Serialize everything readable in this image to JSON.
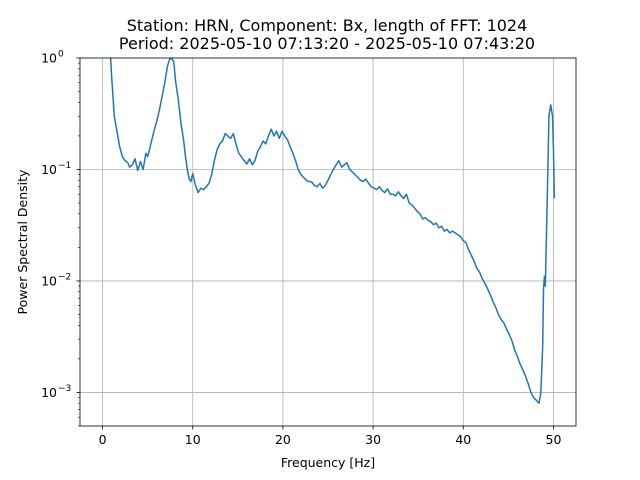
{
  "chart_data": {
    "type": "line",
    "title_line1": "Station: HRN, Component: Bx, length of FFT: 1024",
    "title_line2": "Period: 2025-05-10 07:13:20 - 2025-05-10 07:43:20",
    "xlabel": "Frequency [Hz]",
    "ylabel": "Power Spectral Density",
    "xlim": [
      -2.5,
      52.5
    ],
    "ylim": [
      0.0005,
      1
    ],
    "yscale": "log",
    "grid": true,
    "line_color": "#1f77b4",
    "xticks": [
      {
        "value": 0,
        "label": "0"
      },
      {
        "value": 10,
        "label": "10"
      },
      {
        "value": 20,
        "label": "20"
      },
      {
        "value": 30,
        "label": "30"
      },
      {
        "value": 40,
        "label": "40"
      },
      {
        "value": 50,
        "label": "50"
      }
    ],
    "yticks": [
      {
        "value": 0.001,
        "base": "10",
        "exp": "−3"
      },
      {
        "value": 0.01,
        "base": "10",
        "exp": "−2"
      },
      {
        "value": 0.1,
        "base": "10",
        "exp": "−1"
      },
      {
        "value": 1,
        "base": "10",
        "exp": "0"
      }
    ],
    "series": [
      {
        "x": [
          0.9,
          1.0,
          1.3,
          1.6,
          1.9,
          2.2,
          2.5,
          2.8,
          3.0,
          3.3,
          3.6,
          3.9,
          4.2,
          4.5,
          4.8,
          5.0,
          5.2,
          5.5,
          5.7,
          6.0,
          6.3,
          6.6,
          6.9,
          7.2,
          7.5,
          7.7,
          7.9,
          8.1,
          8.4,
          8.7,
          9.0,
          9.2,
          9.4,
          9.6,
          9.8,
          10.0,
          10.3,
          10.6,
          10.9,
          11.2,
          11.5,
          11.8,
          12.1,
          12.4,
          12.7,
          13.0,
          13.3,
          13.6,
          13.9,
          14.2,
          14.5,
          14.8,
          15.1,
          15.4,
          15.7,
          16.0,
          16.3,
          16.6,
          16.9,
          17.2,
          17.5,
          17.8,
          18.1,
          18.4,
          18.7,
          19.0,
          19.3,
          19.6,
          19.9,
          20.2,
          20.5,
          20.8,
          21.1,
          21.4,
          21.7,
          22.0,
          22.3,
          22.6,
          22.9,
          23.2,
          23.5,
          23.8,
          24.1,
          24.4,
          24.7,
          25.0,
          25.3,
          25.6,
          25.9,
          26.2,
          26.5,
          26.8,
          27.1,
          27.4,
          27.7,
          28.0,
          28.3,
          28.6,
          28.9,
          29.2,
          29.5,
          29.8,
          30.1,
          30.4,
          30.7,
          31.0,
          31.3,
          31.6,
          31.9,
          32.2,
          32.5,
          32.8,
          33.1,
          33.4,
          33.7,
          34.0,
          34.3,
          34.6,
          34.9,
          35.2,
          35.5,
          35.8,
          36.1,
          36.4,
          36.7,
          37.0,
          37.3,
          37.6,
          37.9,
          38.2,
          38.5,
          38.8,
          39.1,
          39.4,
          39.7,
          40.0,
          40.3,
          40.6,
          40.9,
          41.2,
          41.5,
          41.8,
          42.1,
          42.4,
          42.7,
          43.0,
          43.3,
          43.6,
          43.9,
          44.2,
          44.5,
          44.8,
          45.1,
          45.4,
          45.7,
          46.0,
          46.3,
          46.6,
          46.9,
          47.2,
          47.5,
          47.8,
          48.1,
          48.4,
          48.6,
          48.8,
          48.9,
          49.0,
          49.1,
          49.3,
          49.5,
          49.7,
          49.9,
          50.0,
          50.1
        ],
        "y": [
          1.0,
          0.7,
          0.3,
          0.22,
          0.16,
          0.13,
          0.12,
          0.115,
          0.105,
          0.11,
          0.125,
          0.098,
          0.118,
          0.1,
          0.14,
          0.13,
          0.15,
          0.19,
          0.22,
          0.27,
          0.34,
          0.45,
          0.6,
          0.85,
          1.0,
          0.98,
          0.92,
          0.62,
          0.42,
          0.26,
          0.18,
          0.13,
          0.1,
          0.082,
          0.078,
          0.092,
          0.072,
          0.062,
          0.068,
          0.066,
          0.07,
          0.075,
          0.09,
          0.12,
          0.15,
          0.17,
          0.18,
          0.21,
          0.2,
          0.19,
          0.21,
          0.17,
          0.14,
          0.13,
          0.12,
          0.112,
          0.125,
          0.11,
          0.12,
          0.145,
          0.16,
          0.18,
          0.17,
          0.2,
          0.23,
          0.2,
          0.22,
          0.19,
          0.22,
          0.2,
          0.185,
          0.16,
          0.14,
          0.12,
          0.1,
          0.09,
          0.085,
          0.08,
          0.078,
          0.077,
          0.072,
          0.07,
          0.075,
          0.068,
          0.072,
          0.08,
          0.09,
          0.1,
          0.11,
          0.12,
          0.105,
          0.11,
          0.115,
          0.1,
          0.095,
          0.09,
          0.085,
          0.08,
          0.078,
          0.082,
          0.075,
          0.07,
          0.068,
          0.066,
          0.07,
          0.065,
          0.062,
          0.067,
          0.06,
          0.06,
          0.058,
          0.063,
          0.058,
          0.055,
          0.06,
          0.05,
          0.048,
          0.045,
          0.042,
          0.04,
          0.036,
          0.037,
          0.035,
          0.034,
          0.032,
          0.033,
          0.03,
          0.031,
          0.028,
          0.029,
          0.027,
          0.028,
          0.027,
          0.026,
          0.025,
          0.023,
          0.022,
          0.019,
          0.017,
          0.015,
          0.013,
          0.012,
          0.0105,
          0.0095,
          0.0085,
          0.0075,
          0.0065,
          0.0058,
          0.005,
          0.0045,
          0.0042,
          0.0037,
          0.0033,
          0.0029,
          0.0024,
          0.0021,
          0.0018,
          0.0016,
          0.0014,
          0.0012,
          0.001,
          0.0009,
          0.00085,
          0.0008,
          0.001,
          0.0025,
          0.0085,
          0.011,
          0.009,
          0.05,
          0.3,
          0.38,
          0.3,
          0.15,
          0.055
        ]
      }
    ]
  }
}
